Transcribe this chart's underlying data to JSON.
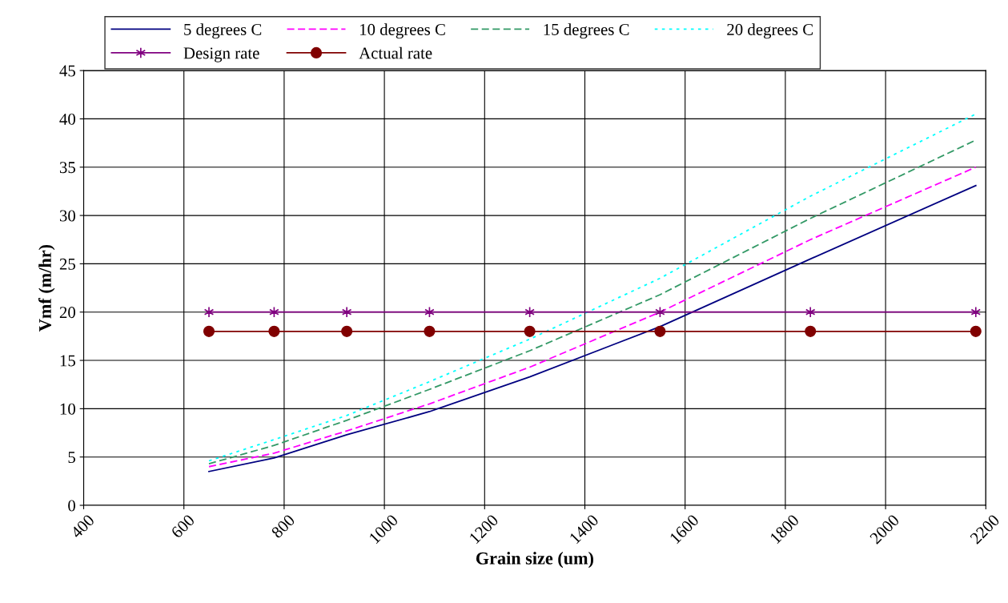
{
  "chart_data": {
    "type": "line",
    "xlabel": "Grain size (um)",
    "ylabel": "Vmf (m/hr)",
    "x": [
      650,
      780,
      925,
      1090,
      1290,
      1550,
      1850,
      2180
    ],
    "xlim": [
      400,
      2200
    ],
    "xticks": [
      400,
      600,
      800,
      1000,
      1200,
      1400,
      1600,
      1800,
      2000,
      2200
    ],
    "ylim": [
      0,
      45
    ],
    "yticks": [
      0,
      5,
      10,
      15,
      20,
      25,
      30,
      35,
      40,
      45
    ],
    "grid": true,
    "legend": "top",
    "series": [
      {
        "name": "5 degrees C",
        "color": "#000080",
        "line_style": "solid",
        "marker": "none",
        "values": [
          3.5,
          4.9,
          7.3,
          9.7,
          13.3,
          18.5,
          25.5,
          33.1
        ]
      },
      {
        "name": "10 degrees C",
        "color": "#ff00ff",
        "line_style": "dashed",
        "marker": "none",
        "values": [
          4.0,
          5.4,
          7.7,
          10.5,
          14.3,
          20.0,
          27.5,
          35.0
        ]
      },
      {
        "name": "15 degrees C",
        "color": "#339966",
        "line_style": "dashed",
        "marker": "none",
        "values": [
          4.3,
          6.2,
          8.8,
          12.0,
          16.0,
          21.8,
          29.7,
          37.8
        ]
      },
      {
        "name": "20 degrees C",
        "color": "#00ffff",
        "line_style": "dotted",
        "marker": "none",
        "values": [
          4.6,
          6.8,
          9.3,
          12.8,
          17.2,
          23.5,
          32.0,
          40.5
        ]
      },
      {
        "name": "Design rate",
        "color": "#800080",
        "line_style": "solid",
        "marker": "cross",
        "values": [
          20,
          20,
          20,
          20,
          20,
          20,
          20,
          20
        ]
      },
      {
        "name": "Actual rate",
        "color": "#800000",
        "line_style": "solid",
        "marker": "circle",
        "values": [
          18,
          18,
          18,
          18,
          18,
          18,
          18,
          18
        ]
      }
    ]
  }
}
